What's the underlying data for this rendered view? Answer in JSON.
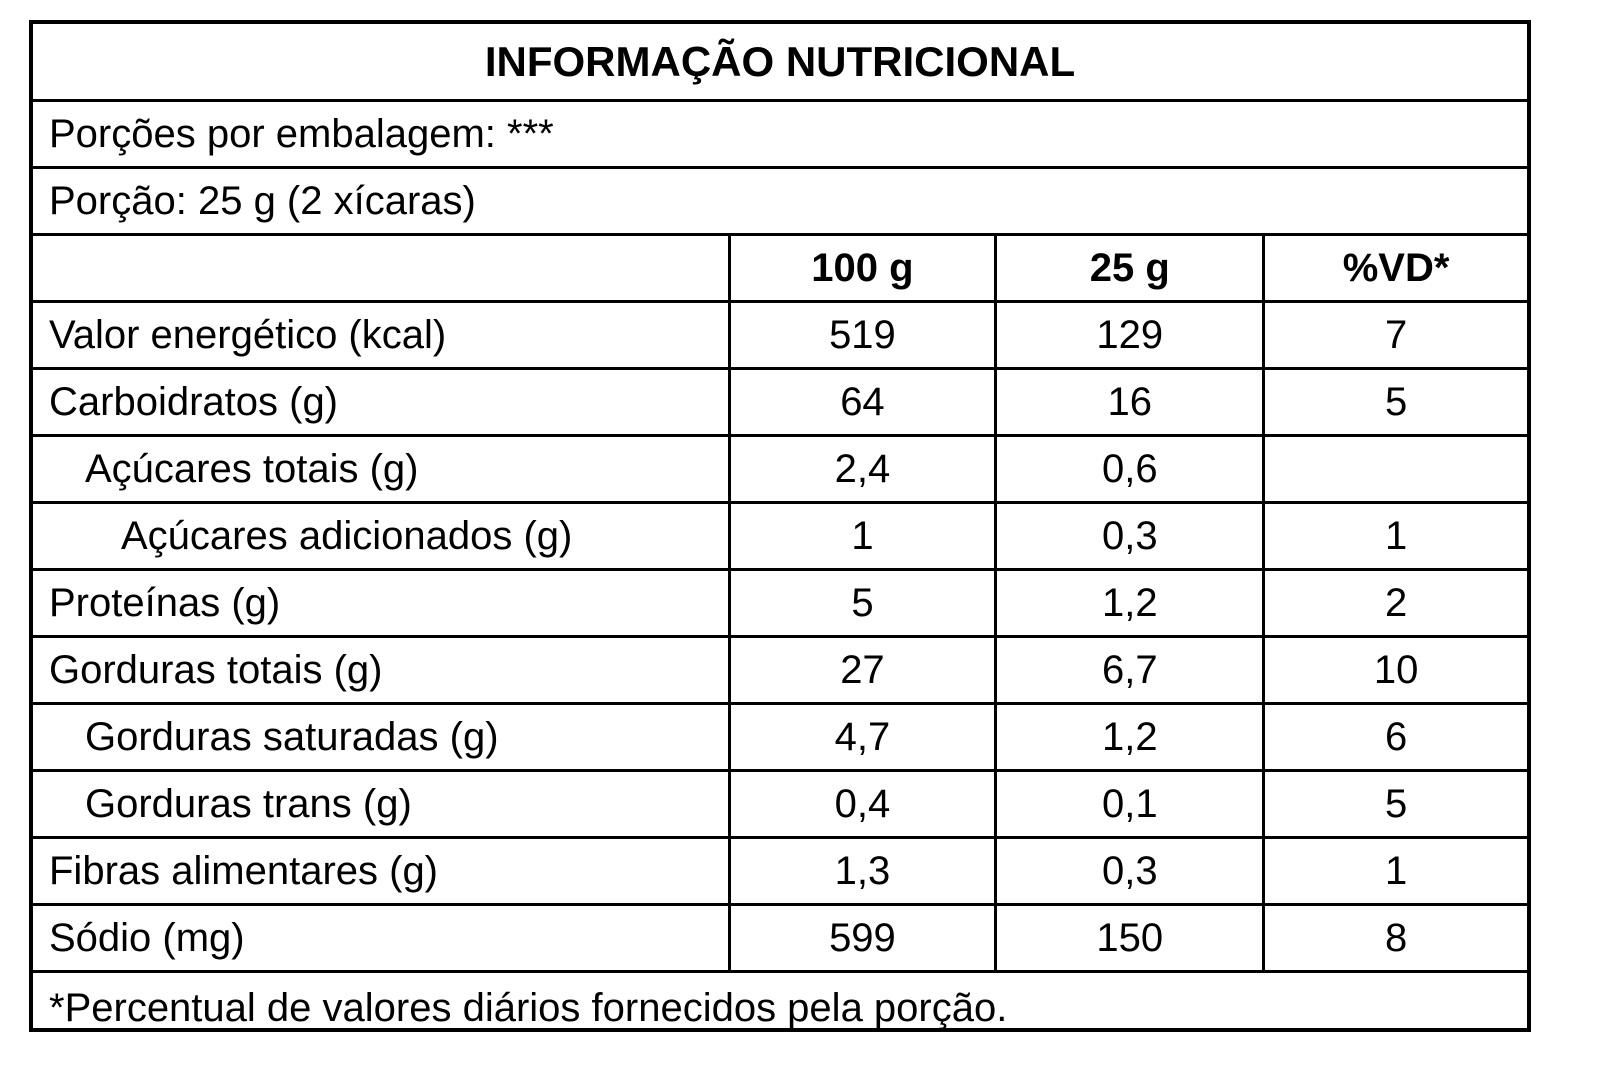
{
  "title": "INFORMAÇÃO NUTRICIONAL",
  "servings_per_package": "Porções por embalagem: ***",
  "serving_size": "Porção: 25 g (2 xícaras)",
  "columns": {
    "label": "",
    "per_100g": "100 g",
    "per_serving": "25 g",
    "daily_value": "%VD*"
  },
  "rows": [
    {
      "label": "Valor energético (kcal)",
      "per_100g": "519",
      "per_serving": "129",
      "dv": "7"
    },
    {
      "label": "Carboidratos (g)",
      "per_100g": "64",
      "per_serving": "16",
      "dv": "5"
    },
    {
      "label": "Açúcares totais (g)",
      "per_100g": "2,4",
      "per_serving": "0,6",
      "dv": ""
    },
    {
      "label": "Açúcares adicionados (g)",
      "per_100g": "1",
      "per_serving": "0,3",
      "dv": "1"
    },
    {
      "label": "Proteínas (g)",
      "per_100g": "5",
      "per_serving": "1,2",
      "dv": "2"
    },
    {
      "label": "Gorduras totais (g)",
      "per_100g": "27",
      "per_serving": "6,7",
      "dv": "10"
    },
    {
      "label": "Gorduras saturadas (g)",
      "per_100g": "4,7",
      "per_serving": "1,2",
      "dv": "6"
    },
    {
      "label": "Gorduras trans (g)",
      "per_100g": "0,4",
      "per_serving": "0,1",
      "dv": "5"
    },
    {
      "label": "Fibras alimentares (g)",
      "per_100g": "1,3",
      "per_serving": "0,3",
      "dv": "1"
    },
    {
      "label": "Sódio (mg)",
      "per_100g": "599",
      "per_serving": "150",
      "dv": "8"
    }
  ],
  "footnote": "*Percentual de valores diários fornecidos pela porção."
}
